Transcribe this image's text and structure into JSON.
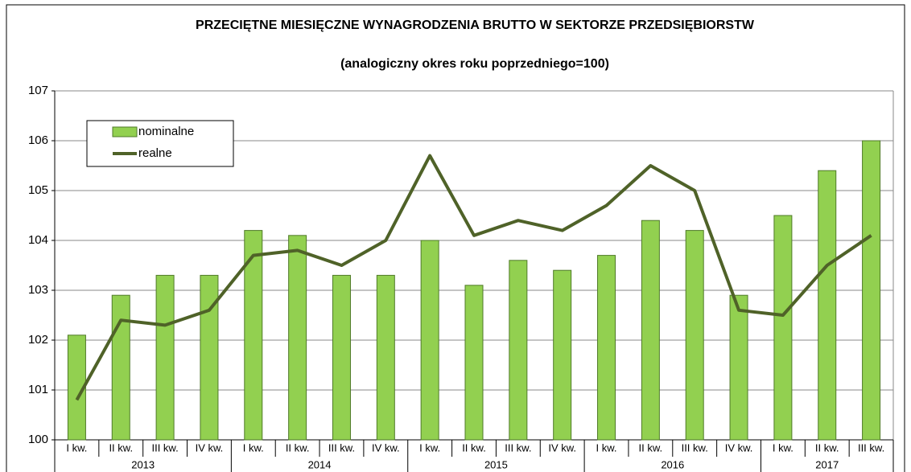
{
  "chart_data": {
    "type": "bar_line",
    "title": "PRZECIĘTNE MIESIĘCZNE WYNAGRODZENIA BRUTTO W SEKTORZE PRZEDSIĘBIORSTW",
    "subtitle": "(analogiczny okres roku poprzedniego=100)",
    "groups": [
      {
        "label": "2013",
        "categories": [
          "I kw.",
          "II kw.",
          "III kw.",
          "IV kw."
        ]
      },
      {
        "label": "2014",
        "categories": [
          "I kw.",
          "II kw.",
          "III kw.",
          "IV kw."
        ]
      },
      {
        "label": "2015",
        "categories": [
          "I kw.",
          "II kw.",
          "III kw.",
          "IV kw."
        ]
      },
      {
        "label": "2016",
        "categories": [
          "I kw.",
          "II kw.",
          "III kw.",
          "IV kw."
        ]
      },
      {
        "label": "2017",
        "categories": [
          "I kw.",
          "II kw.",
          "III kw."
        ]
      }
    ],
    "series": [
      {
        "name": "nominalne",
        "type": "bar",
        "color": "#92d050",
        "values": [
          102.1,
          102.9,
          103.3,
          103.3,
          104.2,
          104.1,
          103.3,
          103.3,
          104.0,
          103.1,
          103.6,
          103.4,
          103.7,
          104.4,
          104.2,
          102.9,
          104.5,
          105.4,
          106.0
        ]
      },
      {
        "name": "realne",
        "type": "line",
        "color": "#4f6228",
        "values": [
          100.8,
          102.4,
          102.3,
          102.6,
          103.7,
          103.8,
          103.5,
          104.0,
          105.7,
          104.1,
          104.4,
          104.2,
          104.7,
          105.5,
          105.0,
          102.6,
          102.5,
          103.5,
          104.1
        ]
      }
    ],
    "ylim": [
      100,
      107
    ],
    "yticks": [
      100,
      101,
      102,
      103,
      104,
      105,
      106,
      107
    ],
    "grid": true,
    "legend": "top-left"
  }
}
